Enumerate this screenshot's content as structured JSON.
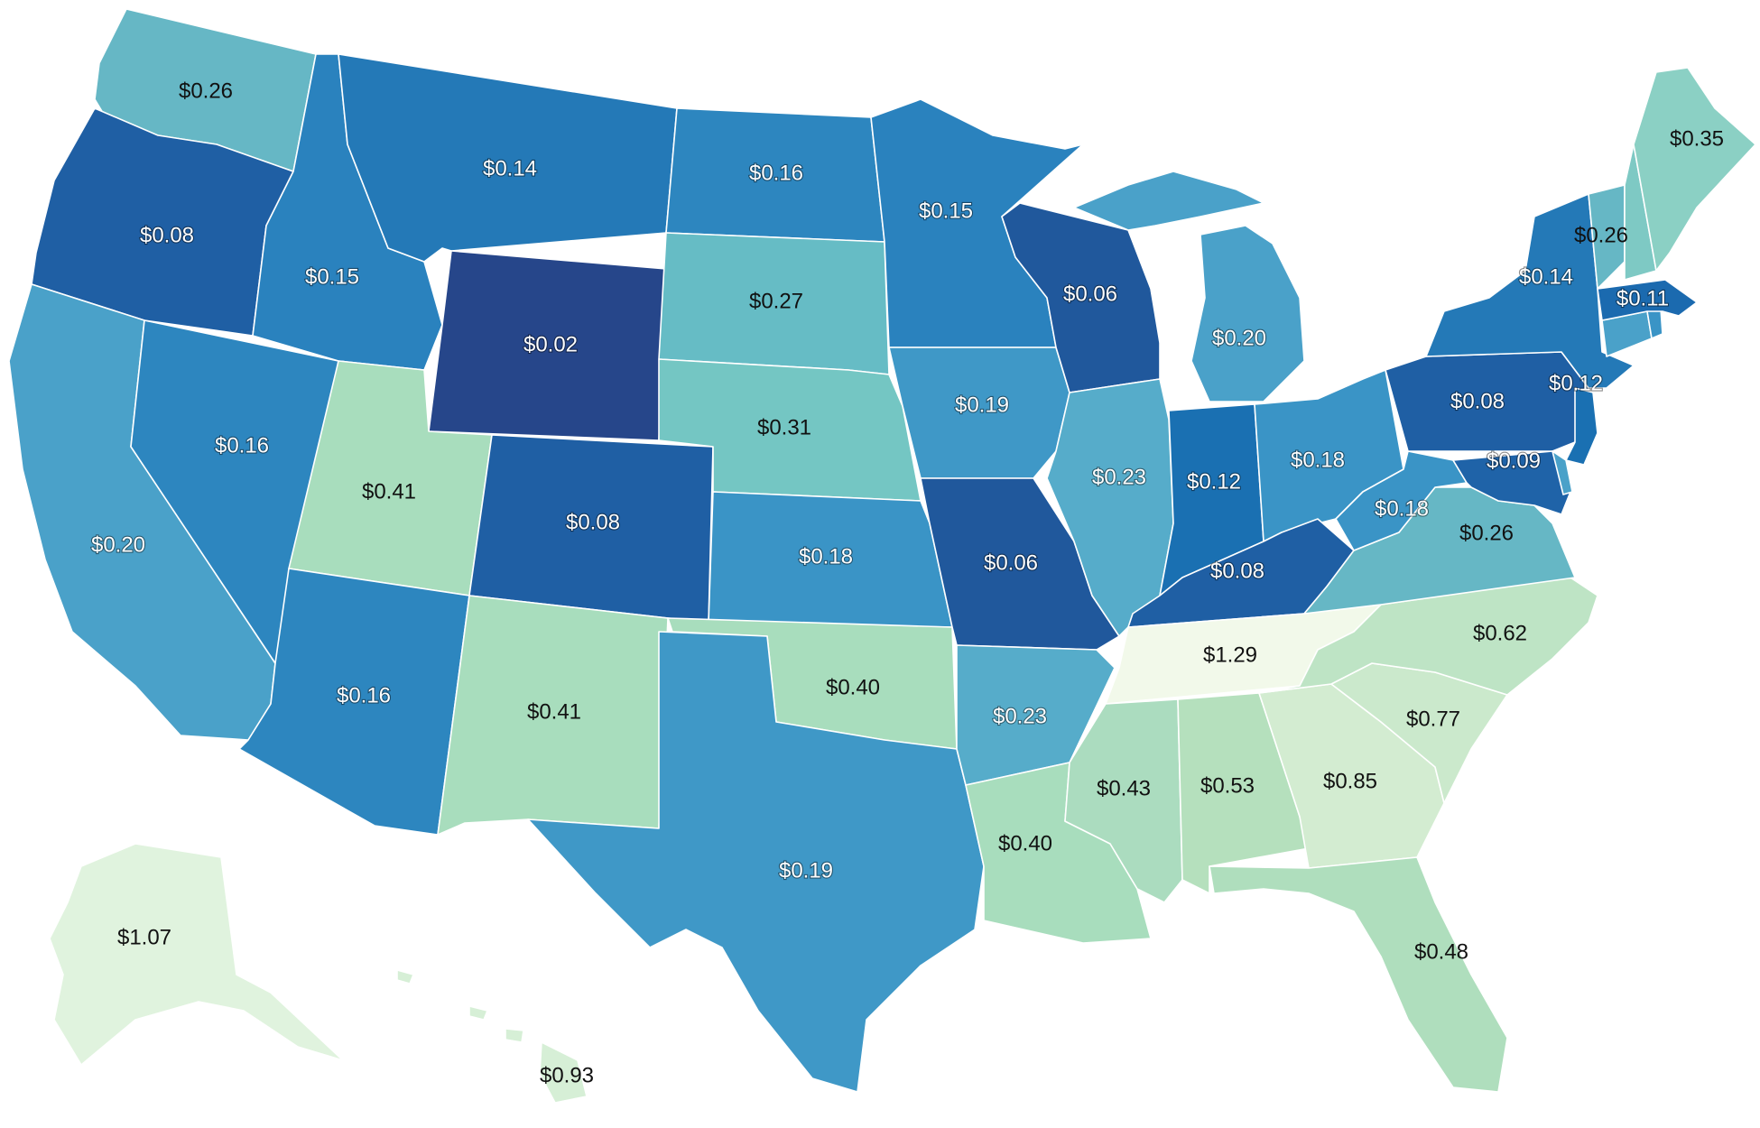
{
  "states": [
    {
      "id": "WA",
      "value": "$0.26",
      "color": "#66b7c5"
    },
    {
      "id": "OR",
      "value": "$0.08",
      "color": "#1f5fa4"
    },
    {
      "id": "CA",
      "value": "$0.20",
      "color": "#4aa1c9"
    },
    {
      "id": "NV",
      "value": "$0.16",
      "color": "#2d86bf"
    },
    {
      "id": "ID",
      "value": "$0.15",
      "color": "#2a82be"
    },
    {
      "id": "MT",
      "value": "$0.14",
      "color": "#2479b7"
    },
    {
      "id": "WY",
      "value": "$0.02",
      "color": "#26468a"
    },
    {
      "id": "UT",
      "value": "$0.41",
      "color": "#a8ddbd"
    },
    {
      "id": "AZ",
      "value": "$0.16",
      "color": "#2d86bf"
    },
    {
      "id": "CO",
      "value": "$0.08",
      "color": "#1f5fa4"
    },
    {
      "id": "NM",
      "value": "$0.41",
      "color": "#a8ddbd"
    },
    {
      "id": "ND",
      "value": "$0.16",
      "color": "#2d86bf"
    },
    {
      "id": "SD",
      "value": "$0.27",
      "color": "#66bcc5"
    },
    {
      "id": "NE",
      "value": "$0.31",
      "color": "#74c6c3"
    },
    {
      "id": "KS",
      "value": "$0.18",
      "color": "#3a94c6"
    },
    {
      "id": "OK",
      "value": "$0.40",
      "color": "#a8ddbd"
    },
    {
      "id": "TX",
      "value": "$0.19",
      "color": "#3f98c7"
    },
    {
      "id": "MN",
      "value": "$0.15",
      "color": "#2a82be"
    },
    {
      "id": "IA",
      "value": "$0.19",
      "color": "#3f98c7"
    },
    {
      "id": "MO",
      "value": "$0.06",
      "color": "#20589c"
    },
    {
      "id": "AR",
      "value": "$0.23",
      "color": "#56acca"
    },
    {
      "id": "LA",
      "value": "$0.40",
      "color": "#a8ddbd"
    },
    {
      "id": "WI",
      "value": "$0.06",
      "color": "#20589c"
    },
    {
      "id": "IL",
      "value": "$0.23",
      "color": "#56acca"
    },
    {
      "id": "MI",
      "value": "$0.20",
      "color": "#4aa1c9"
    },
    {
      "id": "IN",
      "value": "$0.12",
      "color": "#1a70b2"
    },
    {
      "id": "OH",
      "value": "$0.18",
      "color": "#3a94c6"
    },
    {
      "id": "KY",
      "value": "$0.08",
      "color": "#1f5fa4"
    },
    {
      "id": "TN",
      "value": "$1.29",
      "color": "#f2f9ea"
    },
    {
      "id": "MS",
      "value": "$0.43",
      "color": "#abdcbf"
    },
    {
      "id": "AL",
      "value": "$0.53",
      "color": "#b5e0bd"
    },
    {
      "id": "GA",
      "value": "$0.85",
      "color": "#d3ecd1"
    },
    {
      "id": "FL",
      "value": "$0.48",
      "color": "#afdebd"
    },
    {
      "id": "SC",
      "value": "$0.77",
      "color": "#cbe9cc"
    },
    {
      "id": "NC",
      "value": "$0.62",
      "color": "#bee4c5"
    },
    {
      "id": "VA",
      "value": "$0.26",
      "color": "#66b7c5"
    },
    {
      "id": "WV",
      "value": "$0.18",
      "color": "#3a94c6"
    },
    {
      "id": "PA",
      "value": "$0.08",
      "color": "#1f5fa4"
    },
    {
      "id": "NY",
      "value": "$0.14",
      "color": "#2479b7"
    },
    {
      "id": "NJ",
      "value": "$0.12",
      "color": "#1a70b2"
    },
    {
      "id": "MD",
      "value": "$0.09",
      "color": "#1f63a8"
    },
    {
      "id": "DE",
      "value": "",
      "color": "#4aa1c9"
    },
    {
      "id": "CT",
      "value": "",
      "color": "#4aa1c9"
    },
    {
      "id": "RI",
      "value": "",
      "color": "#3a94c6"
    },
    {
      "id": "MA",
      "value": "$0.11",
      "color": "#1b6aaf"
    },
    {
      "id": "VT",
      "value": "$0.26",
      "color": "#66b7c5"
    },
    {
      "id": "NH",
      "value": "",
      "color": "#7ec9c4"
    },
    {
      "id": "ME",
      "value": "$0.35",
      "color": "#8bd0c4"
    },
    {
      "id": "AK",
      "value": "$1.07",
      "color": "#e0f3de"
    },
    {
      "id": "HI",
      "value": "$0.93",
      "color": "#d6efd6"
    }
  ]
}
